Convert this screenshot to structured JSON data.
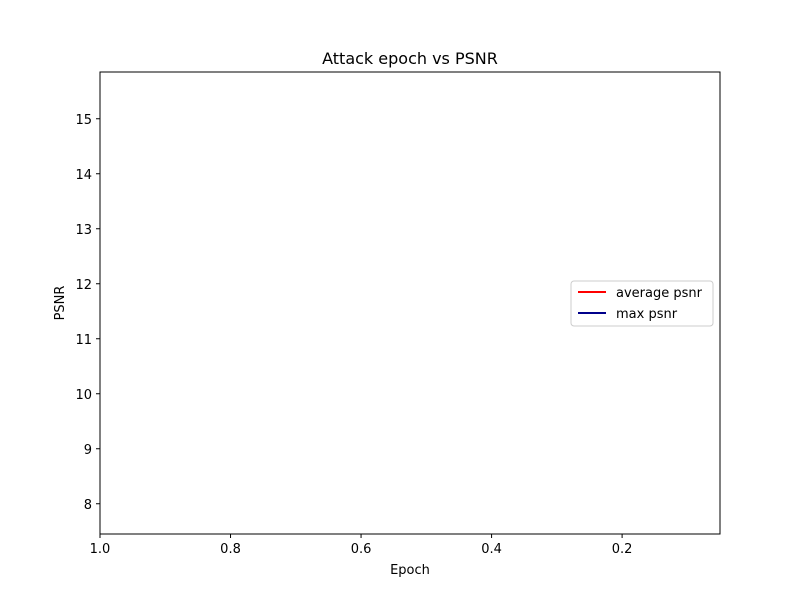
{
  "chart_data": {
    "type": "line",
    "title": "Attack epoch vs PSNR",
    "xlabel": "Epoch",
    "ylabel": "PSNR",
    "x_ticks": [
      1.0,
      0.8,
      0.6,
      0.4,
      0.2
    ],
    "x_tick_labels": [
      "1.0",
      "0.8",
      "0.6",
      "0.4",
      "0.2"
    ],
    "y_ticks": [
      8,
      9,
      10,
      11,
      12,
      13,
      14,
      15
    ],
    "y_tick_labels": [
      "8",
      "9",
      "10",
      "11",
      "12",
      "13",
      "14",
      "15"
    ],
    "xlim": [
      1.0,
      0.05
    ],
    "ylim": [
      7.45,
      15.85
    ],
    "grid": false,
    "legend_position": "center-right",
    "series": [
      {
        "name": "average psnr",
        "color": "#ff0000",
        "x": [],
        "y": []
      },
      {
        "name": "max psnr",
        "color": "#00008b",
        "x": [],
        "y": []
      }
    ]
  }
}
